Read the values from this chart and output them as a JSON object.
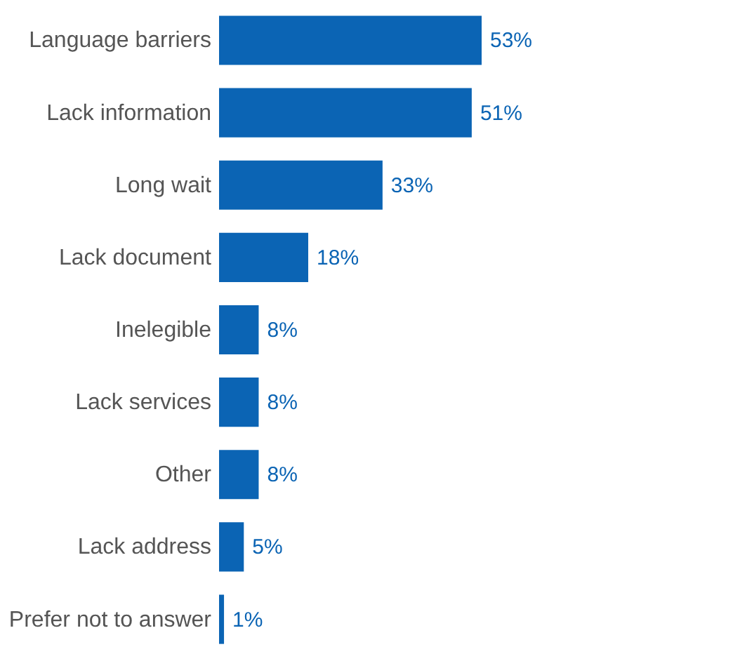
{
  "chart_data": {
    "type": "bar",
    "orientation": "horizontal",
    "categories": [
      "Language barriers",
      "Lack information",
      "Long wait",
      "Lack document",
      "Inelegible",
      "Lack services",
      "Other",
      "Lack address",
      "Prefer not to answer"
    ],
    "values": [
      53,
      51,
      33,
      18,
      8,
      8,
      8,
      5,
      1
    ],
    "value_labels": [
      "53%",
      "51%",
      "33%",
      "18%",
      "8%",
      "8%",
      "8%",
      "5%",
      "1%"
    ],
    "color": "#0b64b4",
    "tick_labels": "y"
  }
}
